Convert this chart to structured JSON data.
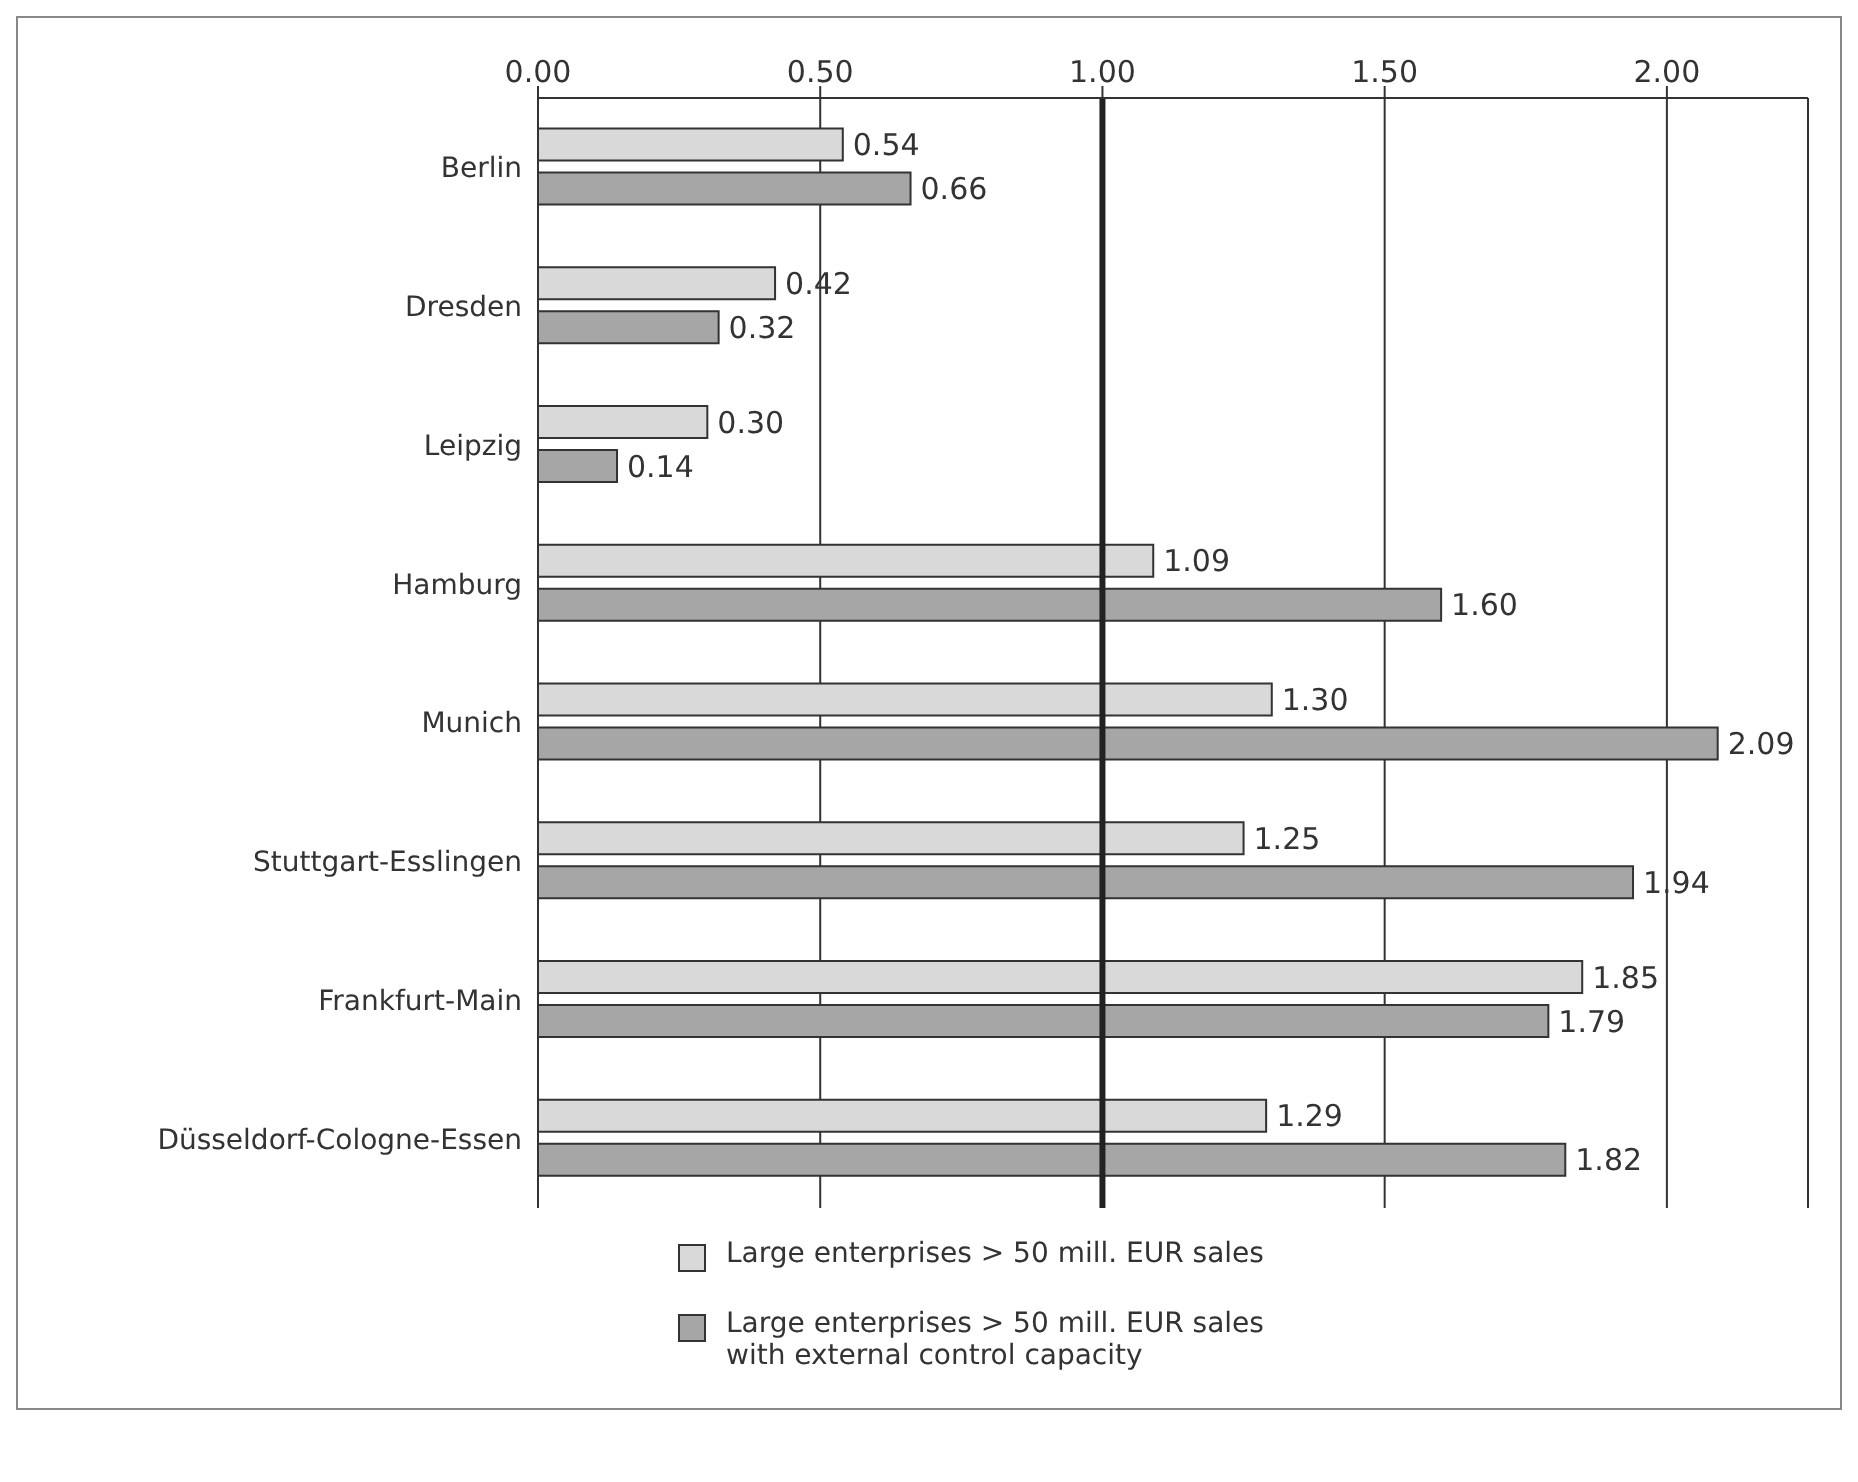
{
  "chart_data": {
    "type": "bar",
    "orientation": "horizontal",
    "categories": [
      "Berlin",
      "Dresden",
      "Leipzig",
      "Hamburg",
      "Munich",
      "Stuttgart-Esslingen",
      "Frankfurt-Main",
      "Düsseldorf-Cologne-Essen"
    ],
    "series": [
      {
        "name": "Large enterprises > 50 mill. EUR sales",
        "color": "#d9d9d9",
        "values": [
          0.54,
          0.42,
          0.3,
          1.09,
          1.3,
          1.25,
          1.85,
          1.29
        ],
        "value_labels": [
          "0.54",
          "0.42",
          "0.30",
          "1.09",
          "1.30",
          "1.25",
          "1.85",
          "1.29"
        ]
      },
      {
        "name": "Large enterprises > 50 mill. EUR sales with external control capacity",
        "color": "#a6a6a6",
        "values": [
          0.66,
          0.32,
          0.14,
          1.6,
          2.09,
          1.94,
          1.79,
          1.82
        ],
        "value_labels": [
          "0.66",
          "0.32",
          "0.14",
          "1.60",
          "2.09",
          "1.94",
          "1.79",
          "1.82"
        ]
      }
    ],
    "xlim": [
      0,
      2.25
    ],
    "xticks": [
      {
        "value": 0,
        "label": "0.00"
      },
      {
        "value": 0.5,
        "label": "0.50"
      },
      {
        "value": 1,
        "label": "1.00"
      },
      {
        "value": 1.5,
        "label": "1.50"
      },
      {
        "value": 2,
        "label": "2.00"
      }
    ],
    "ref_lines": [
      {
        "axis": "x",
        "value": 1,
        "label": null,
        "color": "#222222"
      }
    ],
    "grid": "x",
    "legend": "bottom"
  }
}
